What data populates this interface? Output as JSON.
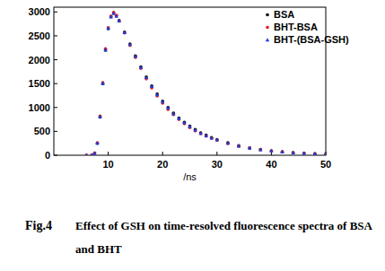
{
  "chart_data": {
    "type": "scatter",
    "title": "Fig.4",
    "subtitle": "Effect of GSH on time-resolved fluorescence spectra of BSA and BHT",
    "x_label": "/ns",
    "x": [
      6,
      7,
      7.5,
      8,
      8.5,
      9,
      9.5,
      10,
      10.5,
      11,
      11.5,
      12,
      13,
      14,
      15,
      16,
      17,
      18,
      19,
      20,
      21,
      22,
      23,
      24,
      25,
      26,
      27,
      28,
      29,
      30,
      32,
      34,
      36,
      38,
      40,
      42,
      44,
      46,
      48,
      50
    ],
    "series": [
      {
        "name": "BSA",
        "color": "#000000",
        "marker": "circle",
        "values": [
          0,
          5,
          40,
          250,
          800,
          1500,
          2200,
          2650,
          2900,
          2980,
          2920,
          2820,
          2580,
          2330,
          2080,
          1850,
          1640,
          1450,
          1280,
          1130,
          1000,
          880,
          780,
          690,
          610,
          540,
          470,
          420,
          370,
          330,
          260,
          200,
          155,
          120,
          95,
          72,
          55,
          42,
          32,
          24
        ]
      },
      {
        "name": "BHT-BSA",
        "color": "#e8191e",
        "marker": "circle",
        "values": [
          0,
          5,
          45,
          260,
          820,
          1520,
          2230,
          2670,
          2910,
          2990,
          2930,
          2810,
          2560,
          2300,
          2050,
          1820,
          1600,
          1410,
          1240,
          1090,
          960,
          850,
          750,
          660,
          580,
          510,
          450,
          400,
          355,
          315,
          245,
          190,
          148,
          115,
          90,
          70,
          53,
          40,
          30,
          22
        ]
      },
      {
        "name": "BHT-(BSA-GSH)",
        "color": "#1f3fd8",
        "marker": "triangle",
        "values": [
          0,
          6,
          42,
          255,
          810,
          1510,
          2210,
          2660,
          2900,
          2970,
          2910,
          2815,
          2570,
          2320,
          2070,
          1840,
          1630,
          1440,
          1270,
          1120,
          990,
          870,
          770,
          680,
          600,
          530,
          460,
          410,
          362,
          322,
          252,
          195,
          150,
          118,
          92,
          71,
          54,
          41,
          31,
          23
        ]
      }
    ],
    "xlim": [
      0,
      50
    ],
    "xticks": [
      10,
      20,
      30,
      40,
      50
    ],
    "ylim": [
      0,
      3100
    ],
    "yticks": [
      0,
      500,
      1000,
      1500,
      2000,
      2500,
      3000
    ],
    "legend": "upper right",
    "grid": false
  }
}
